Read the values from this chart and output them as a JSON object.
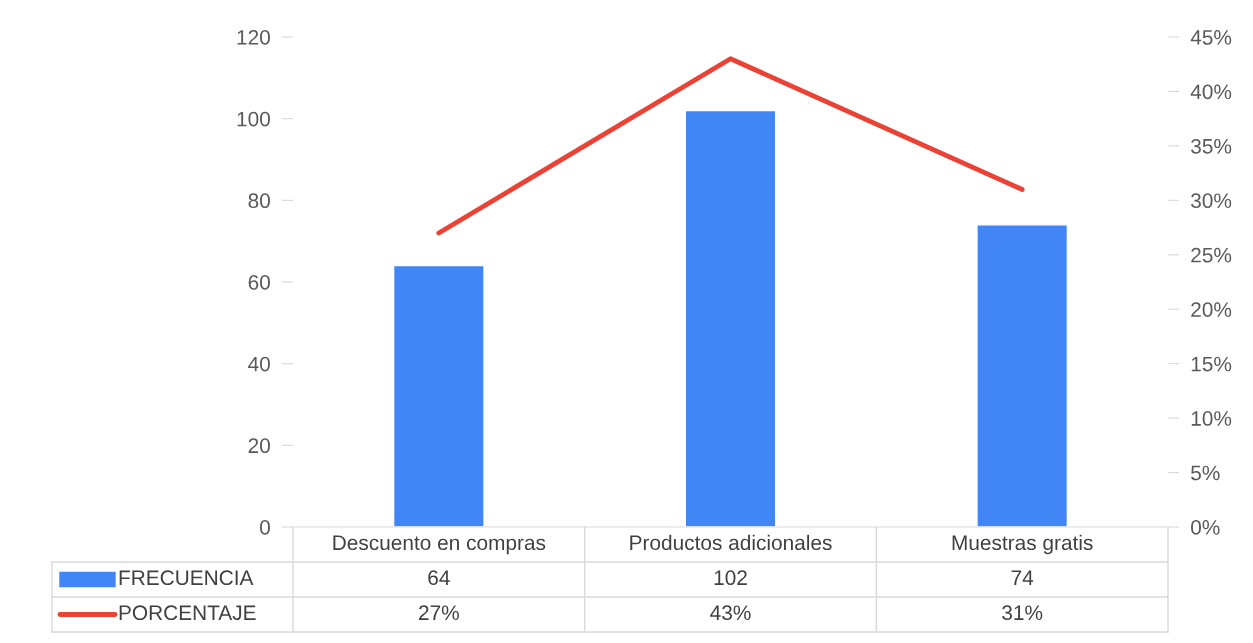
{
  "chart_data": {
    "type": "bar",
    "categories": [
      "Descuento en compras",
      "Productos adicionales",
      "Muestras gratis"
    ],
    "series": [
      {
        "name": "FRECUENCIA",
        "color": "#4285f4",
        "values": [
          64,
          102,
          74
        ],
        "value_labels": [
          "64",
          "102",
          "74"
        ]
      },
      {
        "name": "PORCENTAJE",
        "type": "line",
        "axis": "y2",
        "color": "#ea4335",
        "line_style": "solid",
        "marker": "none",
        "values": [
          27,
          43,
          31
        ],
        "value_labels": [
          "27%",
          "43%",
          "31%"
        ]
      }
    ],
    "ylim": [
      0,
      120
    ],
    "yticks": [
      0,
      20,
      40,
      60,
      80,
      100,
      120
    ],
    "y2lim": [
      0,
      45
    ],
    "y2ticks": [
      {
        "value": 0,
        "label": "0%"
      },
      {
        "value": 5,
        "label": "5%"
      },
      {
        "value": 10,
        "label": "10%"
      },
      {
        "value": 15,
        "label": "15%"
      },
      {
        "value": 20,
        "label": "20%"
      },
      {
        "value": 25,
        "label": "25%"
      },
      {
        "value": 30,
        "label": "30%"
      },
      {
        "value": 35,
        "label": "35%"
      },
      {
        "value": 40,
        "label": "40%"
      },
      {
        "value": 45,
        "label": "45%"
      }
    ],
    "grid": false,
    "legend": "bottom"
  }
}
